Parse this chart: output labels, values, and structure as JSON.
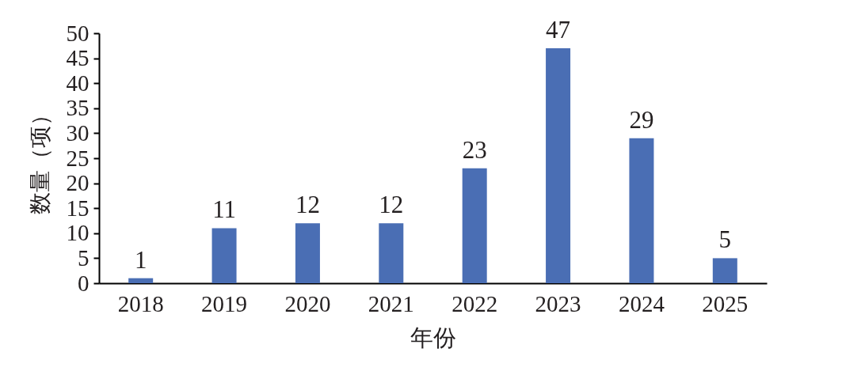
{
  "chart_data": {
    "type": "bar",
    "xlabel": "年份",
    "ylabel": "数量（项）",
    "categories": [
      "2018",
      "2019",
      "2020",
      "2021",
      "2022",
      "2023",
      "2024",
      "2025"
    ],
    "values": [
      1,
      11,
      12,
      12,
      23,
      47,
      29,
      5
    ],
    "color": "#4a6eb4",
    "ylim": [
      0,
      50
    ],
    "yticks": [
      0,
      5,
      10,
      15,
      20,
      25,
      30,
      35,
      40,
      45,
      50
    ],
    "grid": false,
    "data_labels": true
  }
}
